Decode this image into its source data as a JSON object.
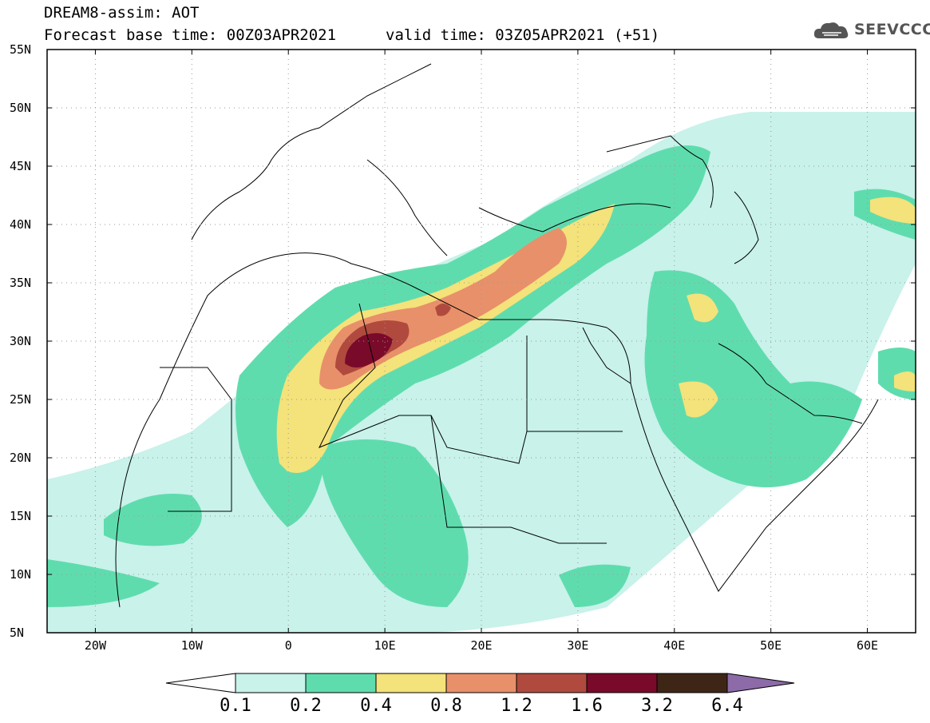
{
  "header": {
    "title": "DREAM8-assim: AOT",
    "base_time": "Forecast base time: 00Z03APR2021",
    "valid_time": "valid time: 03Z05APR2021 (+51)",
    "logo_text": "SEEVCCC",
    "logo_icon": "cloud-icon"
  },
  "map": {
    "variable": "AOT",
    "lat_labels": [
      "55N",
      "50N",
      "45N",
      "40N",
      "35N",
      "30N",
      "25N",
      "20N",
      "15N",
      "10N",
      "5N"
    ],
    "lon_labels": [
      "20W",
      "10W",
      "0",
      "10E",
      "20E",
      "30E",
      "40E",
      "50E",
      "60E"
    ],
    "lat_range": [
      5,
      55
    ],
    "lon_range": [
      -25,
      65
    ],
    "grid": "dotted"
  },
  "colorbar": {
    "levels": [
      "0.1",
      "0.2",
      "0.4",
      "0.8",
      "1.2",
      "1.6",
      "3.2",
      "6.4"
    ],
    "colors": [
      "#c8f2ea",
      "#5fdcae",
      "#f4e27a",
      "#e8906a",
      "#b04a3e",
      "#7a0a2a",
      "#3e2617",
      "#8c6ba8"
    ]
  }
}
